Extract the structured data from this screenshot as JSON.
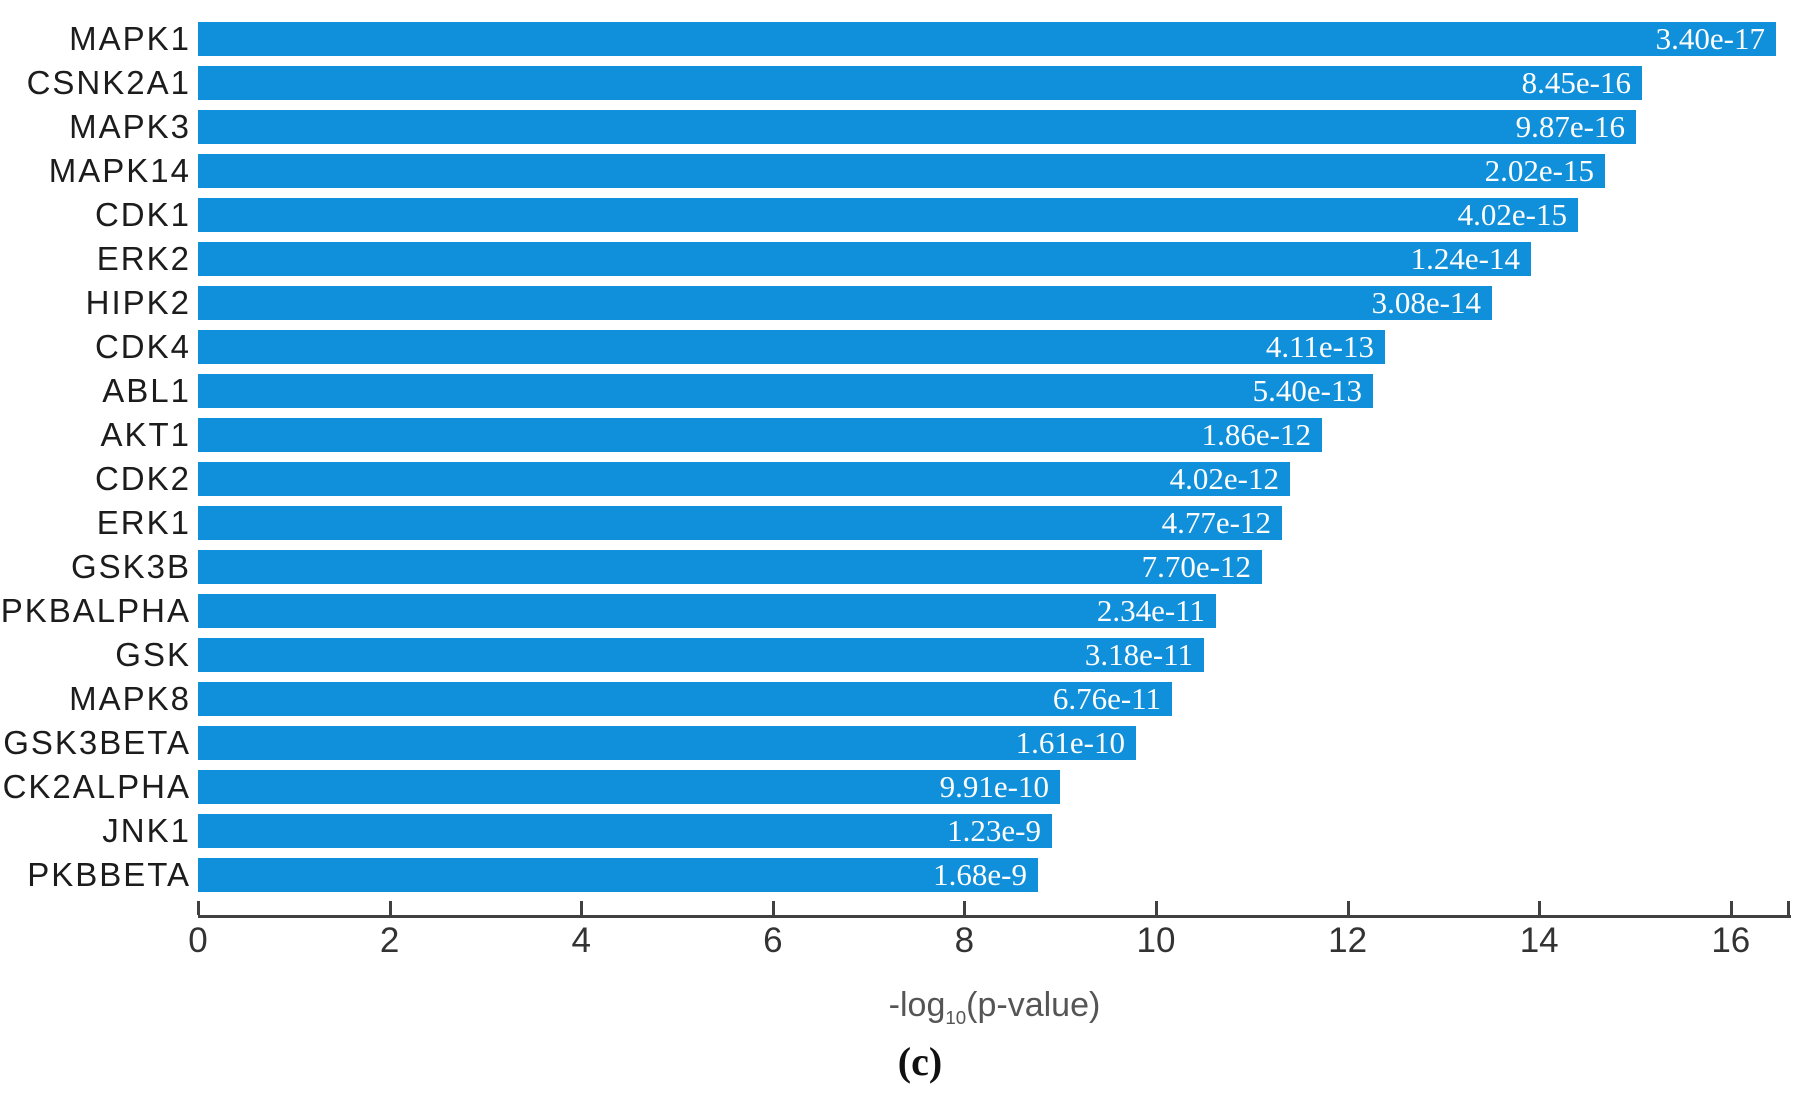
{
  "chart_data": {
    "type": "bar",
    "orientation": "horizontal",
    "title": "",
    "xlabel": "-log10(p-value)",
    "xlabel_parts": {
      "prefix": "-log",
      "subscript": "10",
      "suffix": "(p-value)"
    },
    "caption": "(c)",
    "ylabel": "",
    "x_ticks": [
      0,
      2,
      4,
      6,
      8,
      10,
      12,
      14,
      16
    ],
    "xlim": [
      0,
      16.6
    ],
    "grid": "off",
    "legend": "none",
    "bar_color": "#1090da",
    "value_label_color": "#ffffff",
    "axis_color": "#404040",
    "categories": [
      "MAPK1",
      "CSNK2A1",
      "MAPK3",
      "MAPK14",
      "CDK1",
      "ERK2",
      "HIPK2",
      "CDK4",
      "ABL1",
      "AKT1",
      "CDK2",
      "ERK1",
      "GSK3B",
      "PKBALPHA",
      "GSK",
      "MAPK8",
      "GSK3BETA",
      "CK2ALPHA",
      "JNK1",
      "PKBBETA"
    ],
    "bars": [
      {
        "label": "MAPK1",
        "p_value": "3.40e-17",
        "neg_log10_p": 16.47
      },
      {
        "label": "CSNK2A1",
        "p_value": "8.45e-16",
        "neg_log10_p": 15.07
      },
      {
        "label": "MAPK3",
        "p_value": "9.87e-16",
        "neg_log10_p": 15.01
      },
      {
        "label": "MAPK14",
        "p_value": "2.02e-15",
        "neg_log10_p": 14.69
      },
      {
        "label": "CDK1",
        "p_value": "4.02e-15",
        "neg_log10_p": 14.4
      },
      {
        "label": "ERK2",
        "p_value": "1.24e-14",
        "neg_log10_p": 13.91
      },
      {
        "label": "HIPK2",
        "p_value": "3.08e-14",
        "neg_log10_p": 13.51
      },
      {
        "label": "CDK4",
        "p_value": "4.11e-13",
        "neg_log10_p": 12.39
      },
      {
        "label": "ABL1",
        "p_value": "5.40e-13",
        "neg_log10_p": 12.27
      },
      {
        "label": "AKT1",
        "p_value": "1.86e-12",
        "neg_log10_p": 11.73
      },
      {
        "label": "CDK2",
        "p_value": "4.02e-12",
        "neg_log10_p": 11.4
      },
      {
        "label": "ERK1",
        "p_value": "4.77e-12",
        "neg_log10_p": 11.32
      },
      {
        "label": "GSK3B",
        "p_value": "7.70e-12",
        "neg_log10_p": 11.11
      },
      {
        "label": "PKBALPHA",
        "p_value": "2.34e-11",
        "neg_log10_p": 10.63
      },
      {
        "label": "GSK",
        "p_value": "3.18e-11",
        "neg_log10_p": 10.5
      },
      {
        "label": "MAPK8",
        "p_value": "6.76e-11",
        "neg_log10_p": 10.17
      },
      {
        "label": "GSK3BETA",
        "p_value": "1.61e-10",
        "neg_log10_p": 9.79
      },
      {
        "label": "CK2ALPHA",
        "p_value": "9.91e-10",
        "neg_log10_p": 9.0
      },
      {
        "label": "JNK1",
        "p_value": "1.23e-9",
        "neg_log10_p": 8.91
      },
      {
        "label": "PKBBETA",
        "p_value": "1.68e-9",
        "neg_log10_p": 8.77
      }
    ]
  }
}
